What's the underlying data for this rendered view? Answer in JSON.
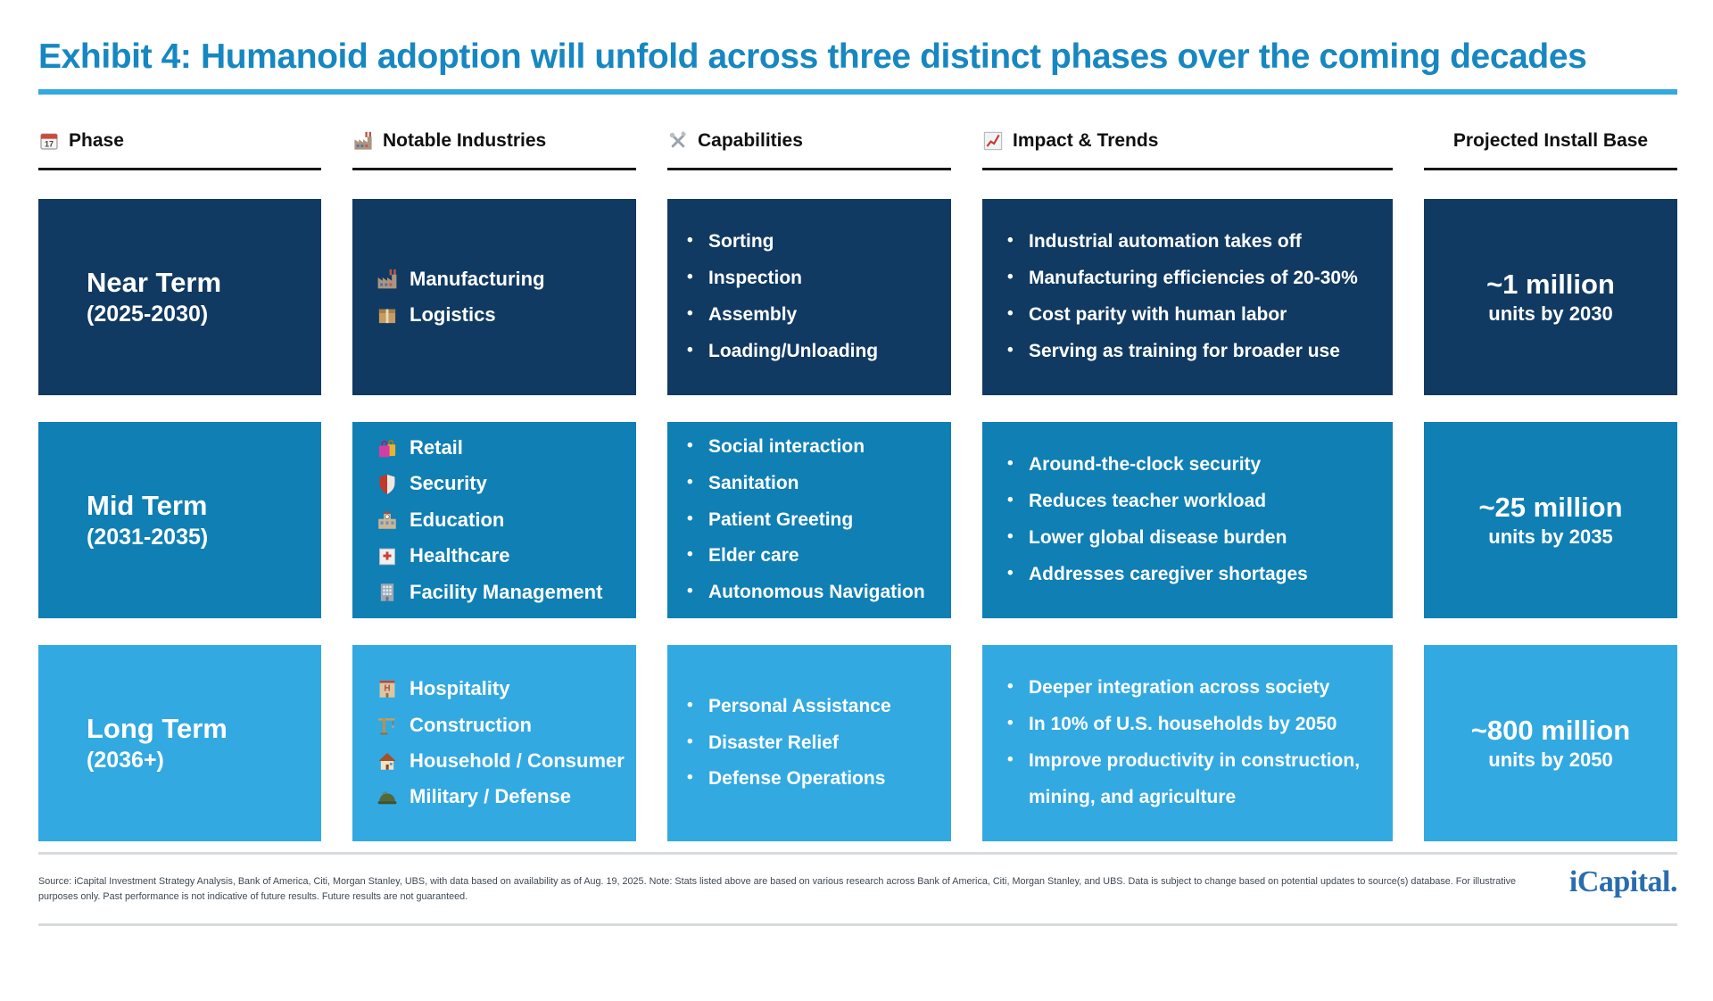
{
  "title": "Exhibit 4: Humanoid adoption will unfold across three distinct phases over the coming decades",
  "columns": [
    {
      "icon": "calendar-icon",
      "label": "Phase"
    },
    {
      "icon": "factory-icon",
      "label": "Notable Industries"
    },
    {
      "icon": "hammer-wrench-icon",
      "label": "Capabilities"
    },
    {
      "icon": "chart-up-icon",
      "label": "Impact & Trends"
    },
    {
      "icon": null,
      "label": "Projected Install Base"
    }
  ],
  "rows": [
    {
      "phase_name": "Near Term",
      "phase_years": "(2025-2030)",
      "color": "#113a62",
      "industries": [
        {
          "icon": "factory-icon",
          "label": "Manufacturing"
        },
        {
          "icon": "package-icon",
          "label": "Logistics"
        }
      ],
      "capabilities": [
        "Sorting",
        "Inspection",
        "Assembly",
        "Loading/Unloading"
      ],
      "impact": [
        "Industrial automation takes off",
        "Manufacturing efficiencies of 20-30%",
        "Cost parity with human labor",
        "Serving as training for broader use"
      ],
      "install_value": "~1 million",
      "install_caption": "units by 2030"
    },
    {
      "phase_name": "Mid Term",
      "phase_years": "(2031-2035)",
      "color": "#0f7fb4",
      "industries": [
        {
          "icon": "shopping-bags-icon",
          "label": "Retail"
        },
        {
          "icon": "shield-icon",
          "label": "Security"
        },
        {
          "icon": "school-icon",
          "label": "Education"
        },
        {
          "icon": "hospital-icon",
          "label": "Healthcare"
        },
        {
          "icon": "office-building-icon",
          "label": "Facility Management"
        }
      ],
      "capabilities": [
        "Social interaction",
        "Sanitation",
        "Patient Greeting",
        "Elder care",
        "Autonomous Navigation"
      ],
      "impact": [
        "Around-the-clock security",
        "Reduces teacher workload",
        "Lower global disease burden",
        "Addresses caregiver shortages"
      ],
      "install_value": "~25 million",
      "install_caption": "units by 2035"
    },
    {
      "phase_name": "Long Term",
      "phase_years": "(2036+)",
      "color": "#33a9e1",
      "industries": [
        {
          "icon": "hotel-icon",
          "label": "Hospitality"
        },
        {
          "icon": "crane-icon",
          "label": "Construction"
        },
        {
          "icon": "house-icon",
          "label": "Household / Consumer"
        },
        {
          "icon": "military-helmet-icon",
          "label": "Military / Defense"
        }
      ],
      "capabilities": [
        "Personal Assistance",
        "Disaster Relief",
        "Defense Operations"
      ],
      "impact": [
        "Deeper integration across society",
        "In 10% of U.S. households by 2050",
        "Improve productivity in construction, mining, and agriculture"
      ],
      "install_value": "~800 million",
      "install_caption": "units by 2050"
    }
  ],
  "footer": {
    "source": "Source: iCapital Investment Strategy Analysis, Bank of America, Citi, Morgan Stanley, UBS, with data based on availability as of Aug. 19, 2025. Note: Stats listed above are based on various research across Bank of America, Citi, Morgan Stanley, and UBS. Data is subject to change based on potential updates to source(s) database. For illustrative purposes only. Past performance is not indicative of future results. Future results are not guaranteed.",
    "logo": "iCapital."
  },
  "colors": {
    "title_blue": "#1787c1",
    "rule_blue": "#33a9e1",
    "header_underline": "#161616",
    "near_term_navy": "#113a62",
    "mid_term_blue": "#0f7fb4",
    "long_term_light_blue": "#33a9e1",
    "logo_blue": "#2a6dae"
  }
}
